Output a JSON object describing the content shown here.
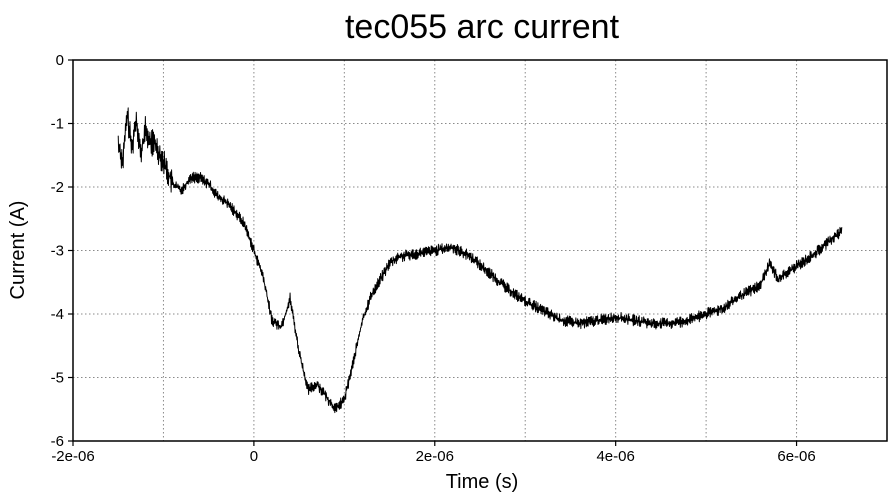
{
  "chart_data": {
    "type": "line",
    "title": "tec055 arc current",
    "xlabel": "Time (s)",
    "ylabel": "Current (A)",
    "xlim": [
      -2e-06,
      7e-06
    ],
    "ylim": [
      -6,
      0
    ],
    "x_ticks": [
      {
        "value": -2e-06,
        "label": "-2e-06"
      },
      {
        "value": 0,
        "label": "0"
      },
      {
        "value": 2e-06,
        "label": "2e-06"
      },
      {
        "value": 4e-06,
        "label": "4e-06"
      },
      {
        "value": 6e-06,
        "label": "6e-06"
      }
    ],
    "x_grid": [
      -1e-06,
      0,
      1e-06,
      2e-06,
      3e-06,
      4e-06,
      5e-06,
      6e-06
    ],
    "y_ticks": [
      {
        "value": 0,
        "label": "0"
      },
      {
        "value": -1,
        "label": "-1"
      },
      {
        "value": -2,
        "label": "-2"
      },
      {
        "value": -3,
        "label": "-3"
      },
      {
        "value": -4,
        "label": "-4"
      },
      {
        "value": -5,
        "label": "-5"
      },
      {
        "value": -6,
        "label": "-6"
      }
    ],
    "grid": true,
    "legend": "none",
    "line_color": "#000000",
    "series": [
      {
        "x": [
          -1.5e-06,
          -1.45e-06,
          -1.4e-06,
          -1.35e-06,
          -1.3e-06,
          -1.25e-06,
          -1.2e-06,
          -1.15e-06,
          -1.1e-06,
          -1e-06,
          -9e-07,
          -8e-07,
          -7e-07,
          -6e-07,
          -5e-07,
          -4e-07,
          -3e-07,
          -2e-07,
          -1e-07,
          0,
          1e-07,
          2e-07,
          3e-07,
          3.5e-07,
          4e-07,
          5e-07,
          6e-07,
          7e-07,
          8e-07,
          9e-07,
          1e-06,
          1.1e-06,
          1.2e-06,
          1.3e-06,
          1.4e-06,
          1.5e-06,
          1.6e-06,
          1.8e-06,
          2e-06,
          2.2e-06,
          2.4e-06,
          2.6e-06,
          2.8e-06,
          3e-06,
          3.2e-06,
          3.4e-06,
          3.6e-06,
          3.8e-06,
          4e-06,
          4.2e-06,
          4.4e-06,
          4.6e-06,
          4.8e-06,
          5e-06,
          5.2e-06,
          5.4e-06,
          5.6e-06,
          5.7e-06,
          5.8e-06,
          6e-06,
          6.2e-06,
          6.4e-06,
          6.5e-06
        ],
        "y": [
          -1.3,
          -1.6,
          -0.85,
          -1.4,
          -0.9,
          -1.5,
          -1.1,
          -1.3,
          -1.3,
          -1.6,
          -1.95,
          -2.05,
          -1.85,
          -1.85,
          -1.95,
          -2.15,
          -2.25,
          -2.4,
          -2.6,
          -3.0,
          -3.4,
          -4.1,
          -4.2,
          -4.0,
          -3.75,
          -4.6,
          -5.2,
          -5.1,
          -5.3,
          -5.5,
          -5.35,
          -4.75,
          -4.1,
          -3.7,
          -3.45,
          -3.2,
          -3.1,
          -3.05,
          -3.0,
          -2.95,
          -3.1,
          -3.35,
          -3.6,
          -3.8,
          -3.95,
          -4.1,
          -4.15,
          -4.1,
          -4.05,
          -4.1,
          -4.15,
          -4.15,
          -4.1,
          -4.0,
          -3.9,
          -3.7,
          -3.55,
          -3.2,
          -3.45,
          -3.25,
          -3.05,
          -2.8,
          -2.7
        ]
      }
    ]
  }
}
